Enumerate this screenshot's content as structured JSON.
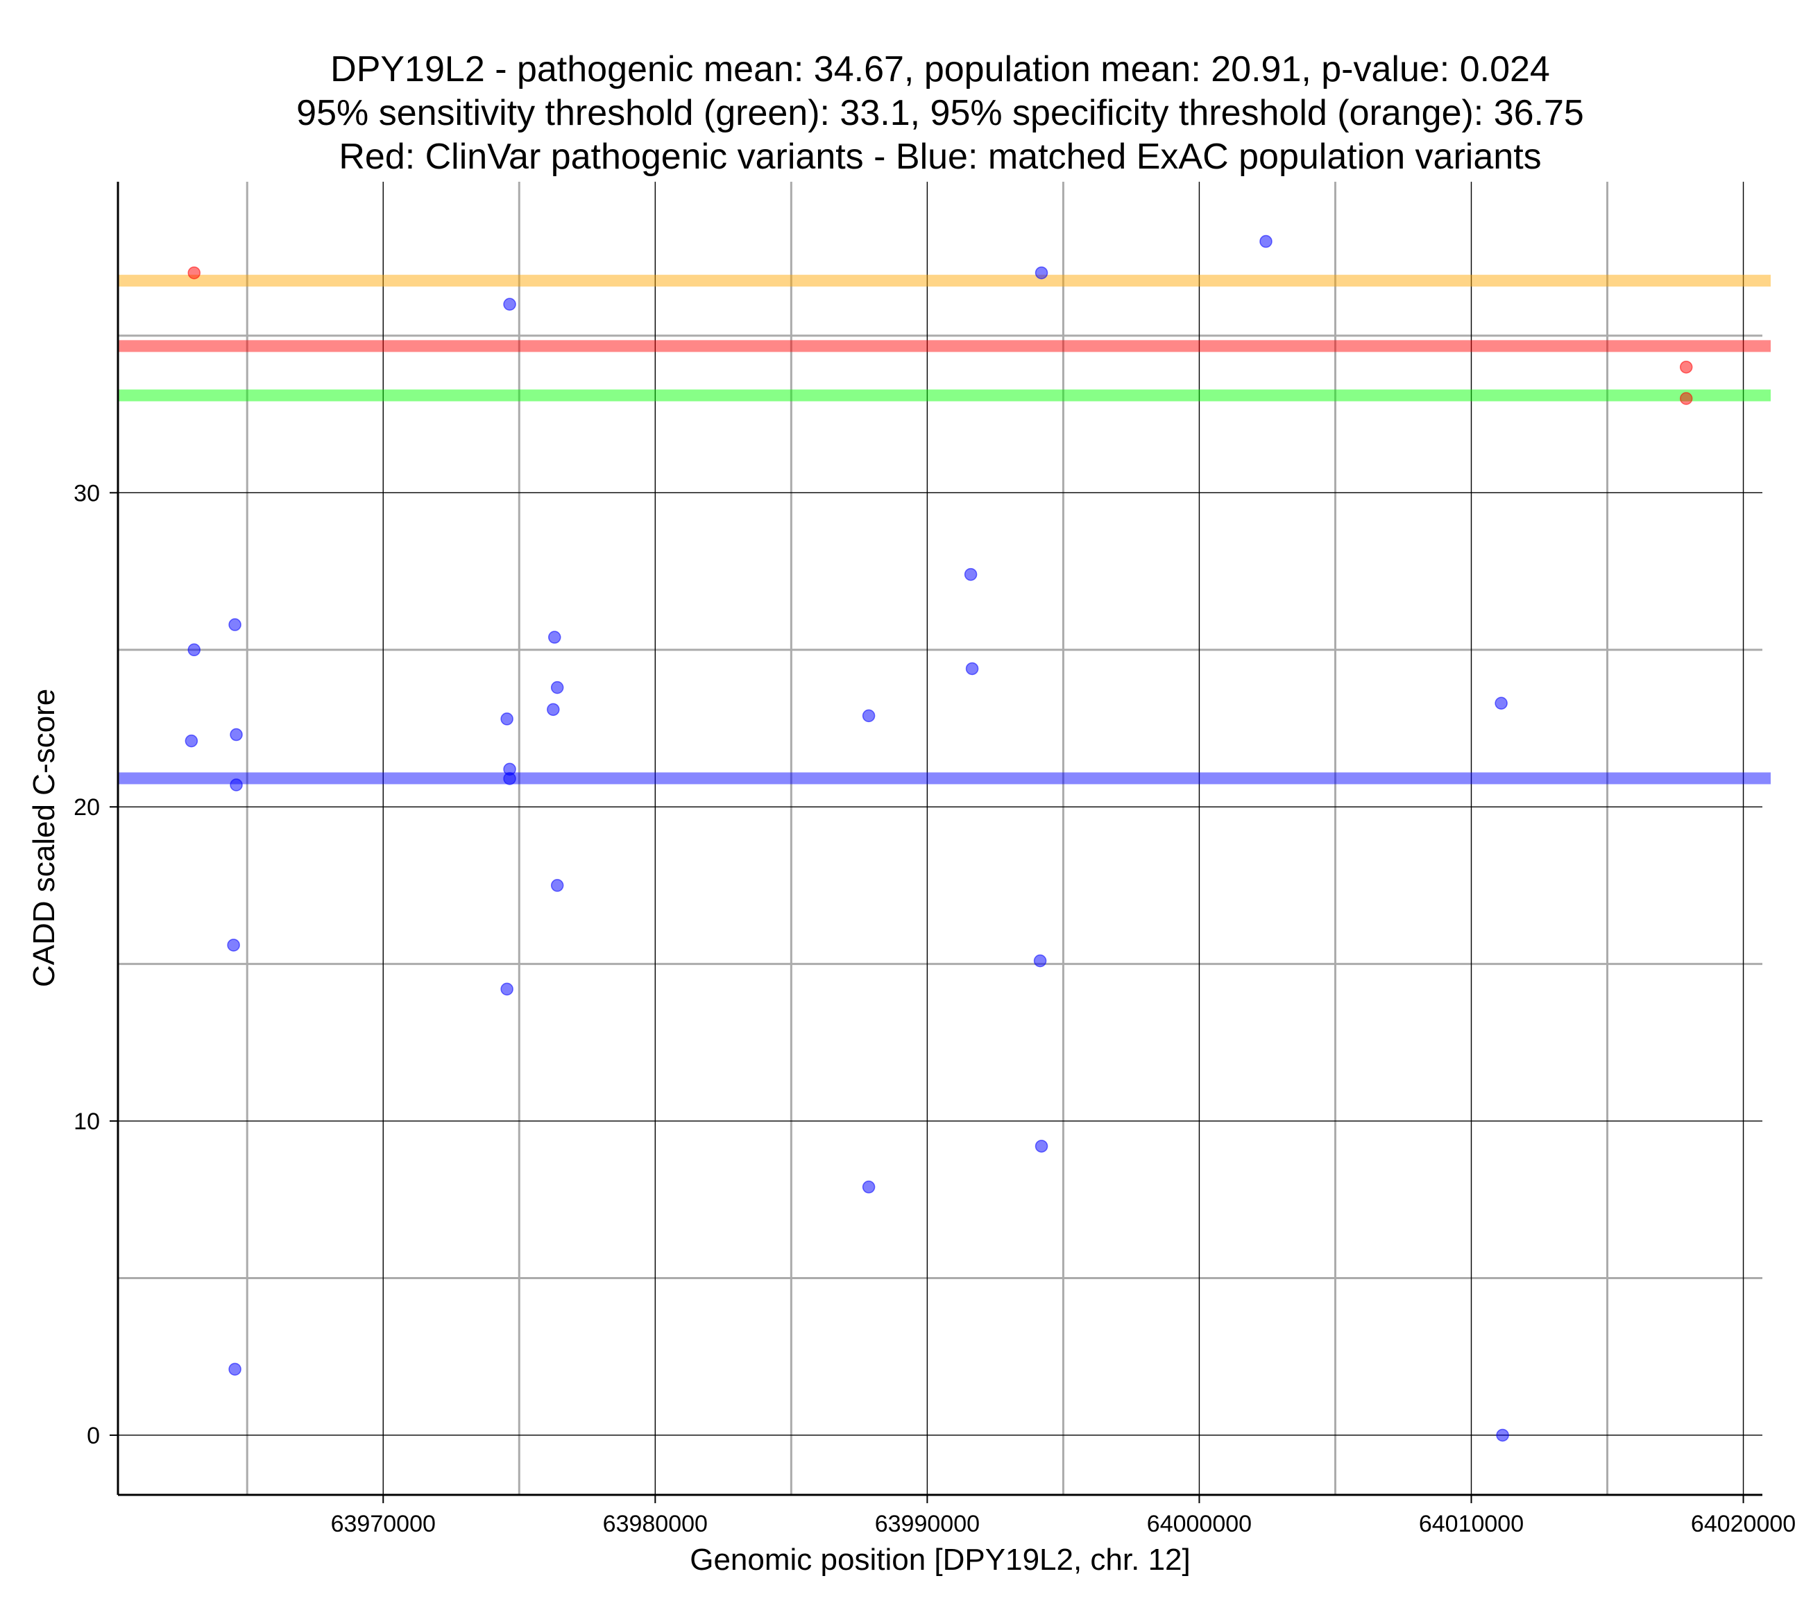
{
  "chart_data": {
    "type": "scatter",
    "title_lines": [
      "DPY19L2 - pathogenic mean: 34.67, population mean: 20.91, p-value: 0.024",
      "95% sensitivity threshold (green): 33.1, 95% specificity threshold (orange): 36.75",
      "Red: ClinVar pathogenic variants - Blue: matched ExAC population variants"
    ],
    "xlabel": "Genomic position [DPY19L2, chr. 12]",
    "ylabel": "CADD scaled C-score",
    "xlim": [
      63960250,
      64020700
    ],
    "ylim": [
      -1.9,
      39.9
    ],
    "x_major_ticks": [
      63970000,
      63980000,
      63990000,
      64000000,
      64010000,
      64020000
    ],
    "x_tick_labels": [
      "63970000",
      "63980000",
      "63990000",
      "64000000",
      "64010000",
      "64020000"
    ],
    "x_minor_ticks": [
      63965000,
      63975000,
      63985000,
      63995000,
      64005000,
      64015000
    ],
    "y_major_ticks": [
      0,
      10,
      20,
      30
    ],
    "y_tick_labels": [
      "0",
      "10",
      "20",
      "30"
    ],
    "y_minor_ticks": [
      5,
      15,
      25,
      35
    ],
    "grid": true,
    "hlines": [
      {
        "name": "specificity-threshold",
        "label": "95% specificity threshold (orange)",
        "y": 36.75,
        "color": "#FFA500"
      },
      {
        "name": "pathogenic-mean",
        "label": "pathogenic mean (red)",
        "y": 34.67,
        "color": "#FF0000"
      },
      {
        "name": "sensitivity-threshold",
        "label": "95% sensitivity threshold (green)",
        "y": 33.1,
        "color": "#00FF00"
      },
      {
        "name": "population-mean",
        "label": "population mean (blue)",
        "y": 20.91,
        "color": "#0000FF"
      }
    ],
    "series": [
      {
        "name": "ClinVar pathogenic variants",
        "color": "#FF0000",
        "points": [
          {
            "x": 63963050,
            "y": 37.0
          },
          {
            "x": 64017900,
            "y": 34.0
          },
          {
            "x": 64017900,
            "y": 33.0
          }
        ]
      },
      {
        "name": "matched ExAC population variants",
        "color": "#0000FF",
        "points": [
          {
            "x": 63963050,
            "y": 25.0
          },
          {
            "x": 63962950,
            "y": 22.1
          },
          {
            "x": 63964550,
            "y": 25.8
          },
          {
            "x": 63964600,
            "y": 22.3
          },
          {
            "x": 63964600,
            "y": 20.7
          },
          {
            "x": 63964500,
            "y": 15.6
          },
          {
            "x": 63964550,
            "y": 2.1
          },
          {
            "x": 63974650,
            "y": 36.0
          },
          {
            "x": 63974550,
            "y": 22.8
          },
          {
            "x": 63974650,
            "y": 21.2
          },
          {
            "x": 63974650,
            "y": 20.9
          },
          {
            "x": 63974550,
            "y": 14.2
          },
          {
            "x": 63976300,
            "y": 25.4
          },
          {
            "x": 63976400,
            "y": 23.8
          },
          {
            "x": 63976250,
            "y": 23.1
          },
          {
            "x": 63976400,
            "y": 17.5
          },
          {
            "x": 63987850,
            "y": 22.9
          },
          {
            "x": 63987850,
            "y": 7.9
          },
          {
            "x": 63991600,
            "y": 27.4
          },
          {
            "x": 63991650,
            "y": 24.4
          },
          {
            "x": 63994200,
            "y": 37.0
          },
          {
            "x": 63994150,
            "y": 15.1
          },
          {
            "x": 63994200,
            "y": 9.2
          },
          {
            "x": 64002450,
            "y": 38.0
          },
          {
            "x": 64011100,
            "y": 23.3
          },
          {
            "x": 64011150,
            "y": 0.0
          }
        ]
      }
    ]
  }
}
